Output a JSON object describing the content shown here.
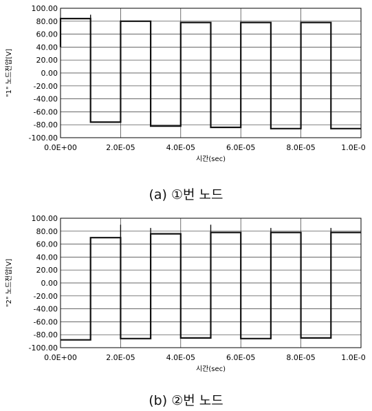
{
  "chart_data": [
    {
      "type": "line",
      "caption": "(a) ①번 노드",
      "ylabel": "\"1\" 노드전압[V]",
      "xlabel": "시간(sec)",
      "xlim": [
        0,
        0.0001
      ],
      "ylim": [
        -100,
        100
      ],
      "y_ticks": [
        "100.00",
        "80.00",
        "60.00",
        "40.00",
        "20.00",
        "0.00",
        "-20.00",
        "-40.00",
        "-60.00",
        "-80.00",
        "-100.00"
      ],
      "x_ticks": [
        "0.0E+00",
        "2.0E-05",
        "4.0E-05",
        "6.0E-05",
        "8.0E-05",
        "1.0E-0"
      ],
      "grid": true,
      "series": [
        {
          "x": [
            0,
            0,
            1e-05,
            1e-05,
            2e-05,
            2e-05,
            3e-05,
            3e-05,
            4e-05,
            4e-05,
            5e-05,
            5e-05,
            6e-05,
            6e-05,
            7e-05,
            7e-05,
            8e-05,
            8e-05,
            9e-05,
            9e-05,
            0.0001
          ],
          "y": [
            40,
            84,
            84,
            -76,
            -76,
            80,
            80,
            -82,
            -82,
            78,
            78,
            -84,
            -84,
            78,
            78,
            -86,
            -86,
            78,
            78,
            -86,
            -86
          ]
        }
      ],
      "spikes": [
        {
          "x": 1e-05,
          "y": 90
        },
        {
          "x": 3e-05,
          "y": -83
        },
        {
          "x": 5e-05,
          "y": -85
        },
        {
          "x": 7e-05,
          "y": -87
        },
        {
          "x": 9e-05,
          "y": -87
        }
      ]
    },
    {
      "type": "line",
      "caption": "(b) ②번 노드",
      "ylabel": "\"2\" 노드전압[V]",
      "xlabel": "시간(sec)",
      "xlim": [
        0,
        0.0001
      ],
      "ylim": [
        -100,
        100
      ],
      "y_ticks": [
        "100.00",
        "80.00",
        "60.00",
        "40.00",
        "20.00",
        "0.00",
        "-20.00",
        "-40.00",
        "-60.00",
        "-80.00",
        "-100.00"
      ],
      "x_ticks": [
        "0.0E+00",
        "2.0E-05",
        "4.0E-05",
        "6.0E-05",
        "8.0E-05",
        "1.0E-0"
      ],
      "grid": true,
      "series": [
        {
          "x": [
            0,
            1e-05,
            1e-05,
            2e-05,
            2e-05,
            3e-05,
            3e-05,
            4e-05,
            4e-05,
            5e-05,
            5e-05,
            6e-05,
            6e-05,
            7e-05,
            7e-05,
            8e-05,
            8e-05,
            9e-05,
            9e-05,
            0.0001
          ],
          "y": [
            -88,
            -88,
            70,
            70,
            -86,
            -86,
            76,
            76,
            -85,
            -85,
            78,
            78,
            -86,
            -86,
            78,
            78,
            -85,
            -85,
            78,
            78
          ]
        }
      ],
      "spikes": [
        {
          "x": 2e-05,
          "y": 90
        },
        {
          "x": 3e-05,
          "y": 85
        },
        {
          "x": 5e-05,
          "y": 90
        },
        {
          "x": 7e-05,
          "y": 85
        },
        {
          "x": 9e-05,
          "y": 85
        }
      ]
    }
  ]
}
